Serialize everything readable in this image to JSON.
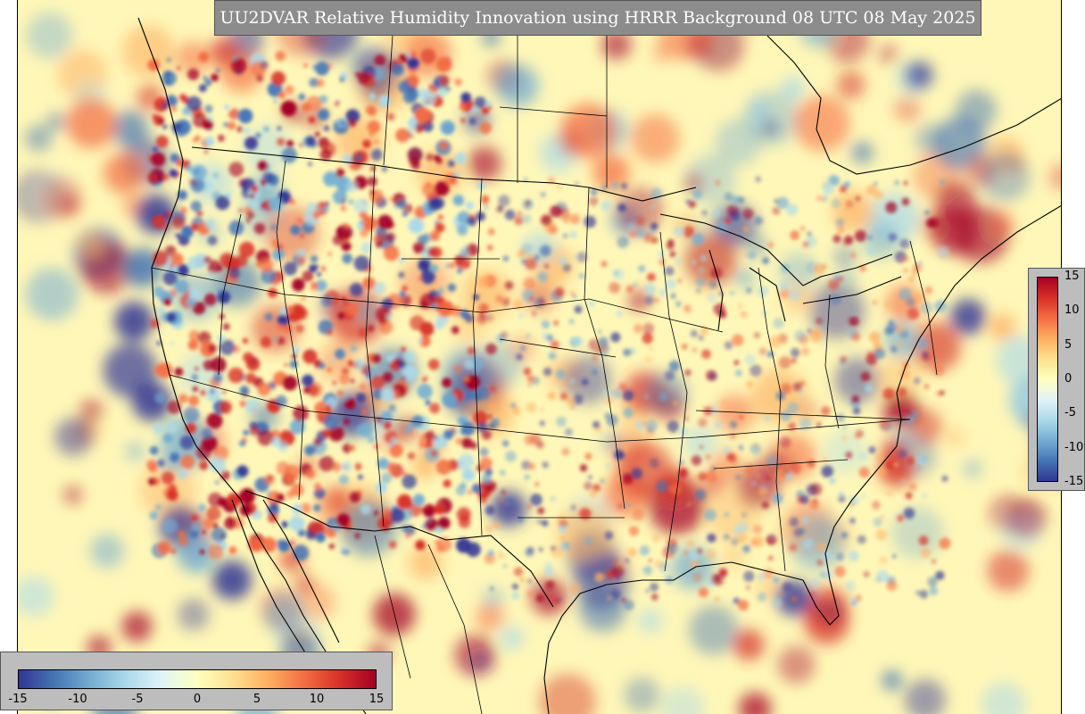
{
  "title": "UU2DVAR Relative Humidity Innovation using HRRR Background 08 UTC 08 May 2025",
  "colorbar": {
    "min": -15,
    "max": 15,
    "ticks_vertical": [
      "15",
      "10",
      "5",
      "0",
      "-5",
      "-10",
      "-15"
    ],
    "ticks_horizontal": [
      "-15",
      "-10",
      "-5",
      "0",
      "5",
      "10",
      "15"
    ],
    "colors": [
      "#313695",
      "#4575b4",
      "#74add1",
      "#abd9e9",
      "#e0f3f8",
      "#ffffbf",
      "#fee090",
      "#fdae61",
      "#f46d43",
      "#d73027",
      "#a50026"
    ]
  },
  "map": {
    "background_color": "#fff7b8",
    "region": "Continental United States, southern Canada, northern Mexico",
    "overlay": "Coastlines, country and state boundaries"
  }
}
